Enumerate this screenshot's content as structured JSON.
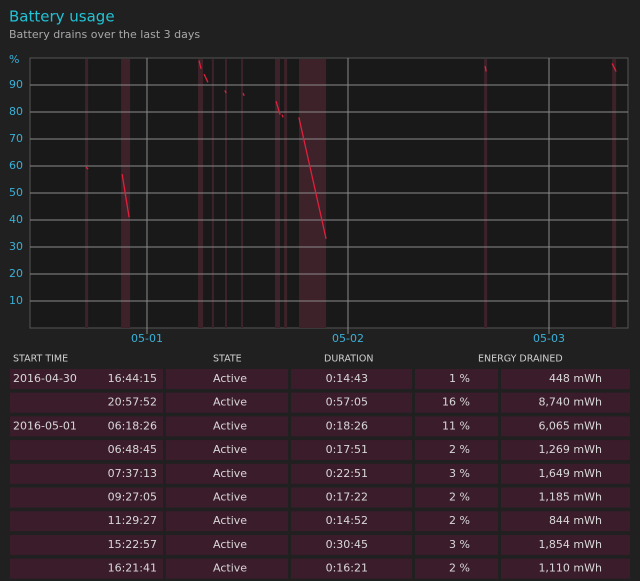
{
  "header": {
    "title": "Battery usage",
    "subtitle": "Battery drains over the last 3 days"
  },
  "chart_data": {
    "type": "line",
    "y_label": "%",
    "x": [
      0.697,
      0.707,
      null,
      0.876,
      0.911,
      null,
      1.259,
      1.269,
      null,
      1.284,
      1.303,
      null,
      1.388,
      1.393,
      null,
      1.478,
      1.483,
      null,
      1.642,
      1.662,
      null,
      1.672,
      1.677,
      null,
      1.756,
      1.891,
      null,
      2.682,
      2.687,
      null,
      3.314,
      3.334
    ],
    "series": [
      {
        "color": "#e0203c",
        "values": [
          59.5,
          58.8,
          null,
          57,
          41,
          null,
          99,
          96,
          null,
          94,
          91,
          null,
          88,
          87,
          null,
          87,
          86,
          null,
          84,
          79,
          null,
          79,
          78,
          null,
          78,
          33,
          null,
          97,
          95,
          null,
          98,
          95
        ]
      }
    ],
    "active_periods": [
      [
        0.692,
        0.707
      ],
      [
        0.871,
        0.916
      ],
      [
        1.254,
        1.279
      ],
      [
        1.323,
        1.333
      ],
      [
        1.388,
        1.398
      ],
      [
        1.468,
        1.478
      ],
      [
        1.637,
        1.662
      ],
      [
        1.682,
        1.697
      ],
      [
        1.756,
        1.891
      ],
      [
        2.677,
        2.692
      ],
      [
        3.314,
        3.334
      ]
    ],
    "xlim": [
      0.418,
      3.393
    ],
    "ylim": [
      0,
      100
    ],
    "xticks": [
      {
        "value": 1,
        "label": "05-01"
      },
      {
        "value": 2,
        "label": "05-02"
      },
      {
        "value": 3,
        "label": "05-03"
      }
    ],
    "yticks": [
      10,
      20,
      30,
      40,
      50,
      60,
      70,
      80,
      90
    ],
    "grid": true
  },
  "table": {
    "columns": [
      "START TIME",
      "STATE",
      "DURATION",
      "ENERGY DRAINED"
    ],
    "rows": [
      [
        "2016-04-30",
        "16:44:15",
        "Active",
        "0:14:43",
        "1 %",
        "448 mWh"
      ],
      [
        null,
        "20:57:52",
        "Active",
        "0:57:05",
        "16 %",
        "8,740 mWh"
      ],
      [
        "2016-05-01",
        "06:18:26",
        "Active",
        "0:18:26",
        "11 %",
        "6,065 mWh"
      ],
      [
        null,
        "06:48:45",
        "Active",
        "0:17:51",
        "2 %",
        "1,269 mWh"
      ],
      [
        null,
        "07:37:13",
        "Active",
        "0:22:51",
        "3 %",
        "1,649 mWh"
      ],
      [
        null,
        "09:27:05",
        "Active",
        "0:17:22",
        "2 %",
        "1,185 mWh"
      ],
      [
        null,
        "11:29:27",
        "Active",
        "0:14:52",
        "2 %",
        "844 mWh"
      ],
      [
        null,
        "15:22:57",
        "Active",
        "0:30:45",
        "3 %",
        "1,854 mWh"
      ],
      [
        null,
        "16:21:41",
        "Active",
        "0:16:21",
        "2 %",
        "1,110 mWh"
      ]
    ]
  }
}
